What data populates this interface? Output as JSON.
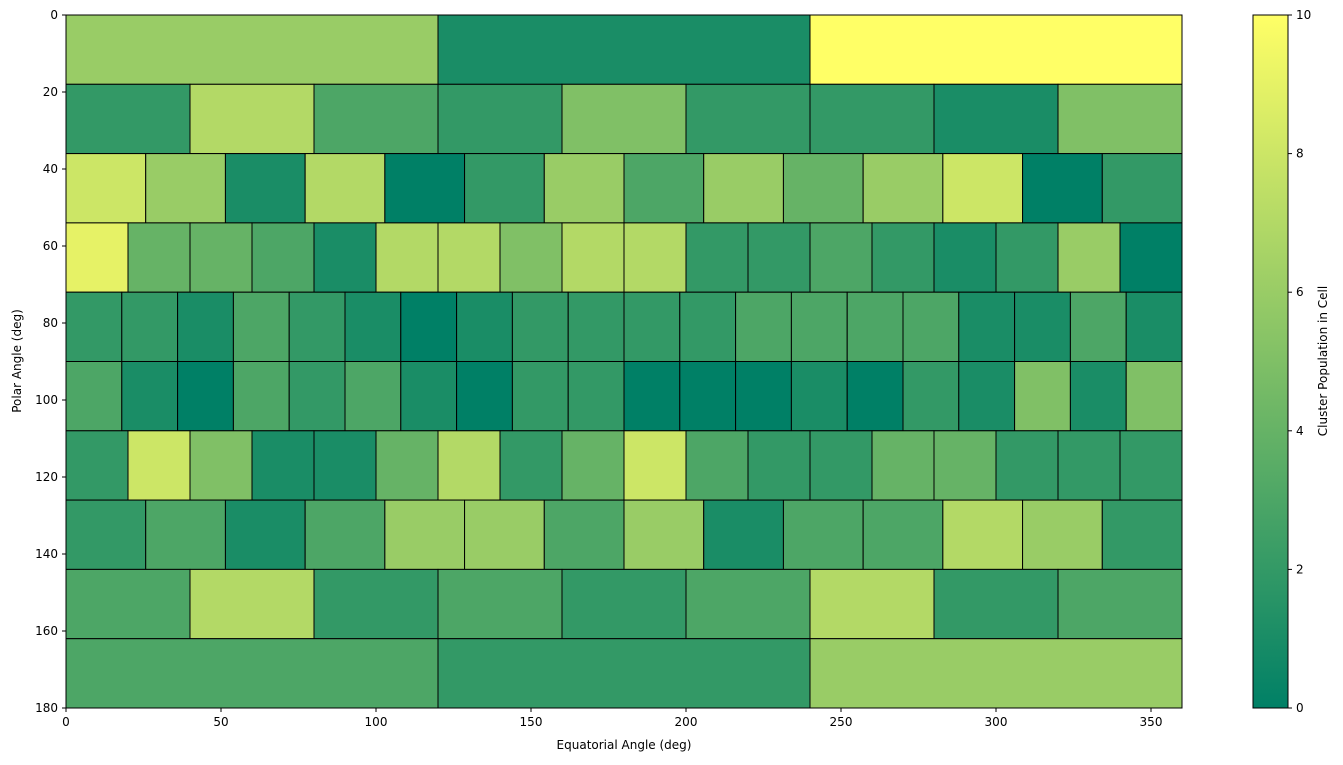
{
  "chart_data": {
    "type": "heatmap",
    "title": "",
    "xlabel": "Equatorial Angle (deg)",
    "ylabel": "Polar Angle (deg)",
    "xlim": [
      0,
      360
    ],
    "ylim": [
      180,
      0
    ],
    "x_ticks": [
      0,
      50,
      100,
      150,
      200,
      250,
      300,
      350
    ],
    "y_ticks": [
      0,
      20,
      40,
      60,
      80,
      100,
      120,
      140,
      160,
      180
    ],
    "grid": false,
    "colormap": "summer",
    "colormap_stops": [
      "#008066",
      "#ffff66"
    ],
    "cell_edge_color": "#000000",
    "colorbar": {
      "label": "Cluster Population in Cell",
      "range": [
        0,
        10
      ],
      "ticks": [
        0,
        2,
        4,
        6,
        8,
        10
      ],
      "placement": "right"
    },
    "bands": [
      {
        "theta": [
          0,
          18
        ],
        "values": [
          6,
          1,
          10
        ]
      },
      {
        "theta": [
          18,
          36
        ],
        "values": [
          2,
          7,
          3,
          2,
          5,
          2,
          2,
          1,
          5
        ]
      },
      {
        "theta": [
          36,
          54
        ],
        "values": [
          8,
          6,
          1,
          7,
          0,
          2,
          6,
          3,
          6,
          4,
          6,
          8,
          0,
          2
        ]
      },
      {
        "theta": [
          54,
          72
        ],
        "values": [
          9,
          4,
          4,
          3,
          1,
          7,
          7,
          5,
          7,
          7,
          2,
          2,
          3,
          2,
          1,
          2,
          6,
          0
        ]
      },
      {
        "theta": [
          72,
          90
        ],
        "values": [
          2,
          2,
          1,
          3,
          2,
          1,
          0,
          1,
          2,
          2,
          2,
          2,
          3,
          3,
          3,
          3,
          1,
          1,
          3,
          1
        ]
      },
      {
        "theta": [
          90,
          108
        ],
        "values": [
          3,
          1,
          0,
          3,
          2,
          3,
          1,
          0,
          2,
          2,
          0,
          0,
          0,
          1,
          0,
          2,
          1,
          5,
          1,
          5
        ]
      },
      {
        "theta": [
          108,
          126
        ],
        "values": [
          2,
          8,
          5,
          1,
          1,
          4,
          7,
          2,
          4,
          8,
          3,
          2,
          2,
          4,
          4,
          2,
          2,
          2
        ]
      },
      {
        "theta": [
          126,
          144
        ],
        "values": [
          2,
          3,
          1,
          3,
          6,
          6,
          3,
          6,
          1,
          3,
          3,
          7,
          6,
          2
        ]
      },
      {
        "theta": [
          144,
          162
        ],
        "values": [
          3,
          7,
          2,
          3,
          2,
          3,
          7,
          2,
          3
        ]
      },
      {
        "theta": [
          162,
          180
        ],
        "values": [
          3,
          2,
          6
        ]
      }
    ]
  }
}
